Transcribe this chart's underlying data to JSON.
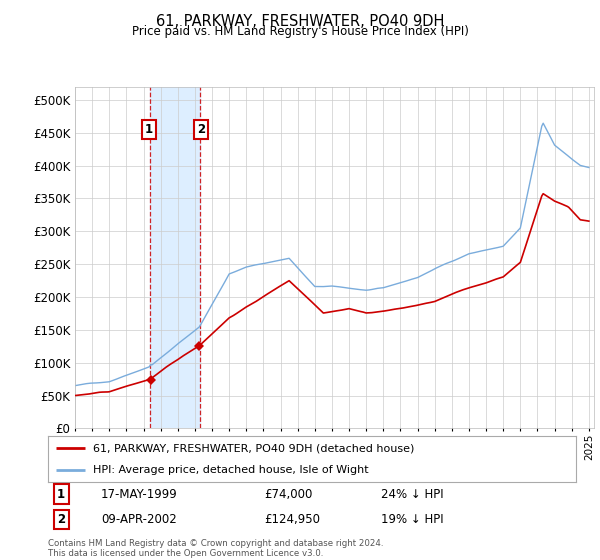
{
  "title": "61, PARKWAY, FRESHWATER, PO40 9DH",
  "subtitle": "Price paid vs. HM Land Registry's House Price Index (HPI)",
  "legend_label_red": "61, PARKWAY, FRESHWATER, PO40 9DH (detached house)",
  "legend_label_blue": "HPI: Average price, detached house, Isle of Wight",
  "transaction1_date": "17-MAY-1999",
  "transaction1_price": "£74,000",
  "transaction1_hpi": "24% ↓ HPI",
  "transaction1_year": 1999.38,
  "transaction1_value": 74000,
  "transaction2_date": "09-APR-2002",
  "transaction2_price": "£124,950",
  "transaction2_hpi": "19% ↓ HPI",
  "transaction2_year": 2002.27,
  "transaction2_value": 124950,
  "copyright_text": "Contains HM Land Registry data © Crown copyright and database right 2024.\nThis data is licensed under the Open Government Licence v3.0.",
  "ylim": [
    0,
    520000
  ],
  "yticks": [
    0,
    50000,
    100000,
    150000,
    200000,
    250000,
    300000,
    350000,
    400000,
    450000,
    500000
  ],
  "hpi_color": "#7aacdc",
  "price_color": "#cc0000",
  "background_color": "#ffffff",
  "grid_color": "#cccccc",
  "shade_color": "#ddeeff"
}
